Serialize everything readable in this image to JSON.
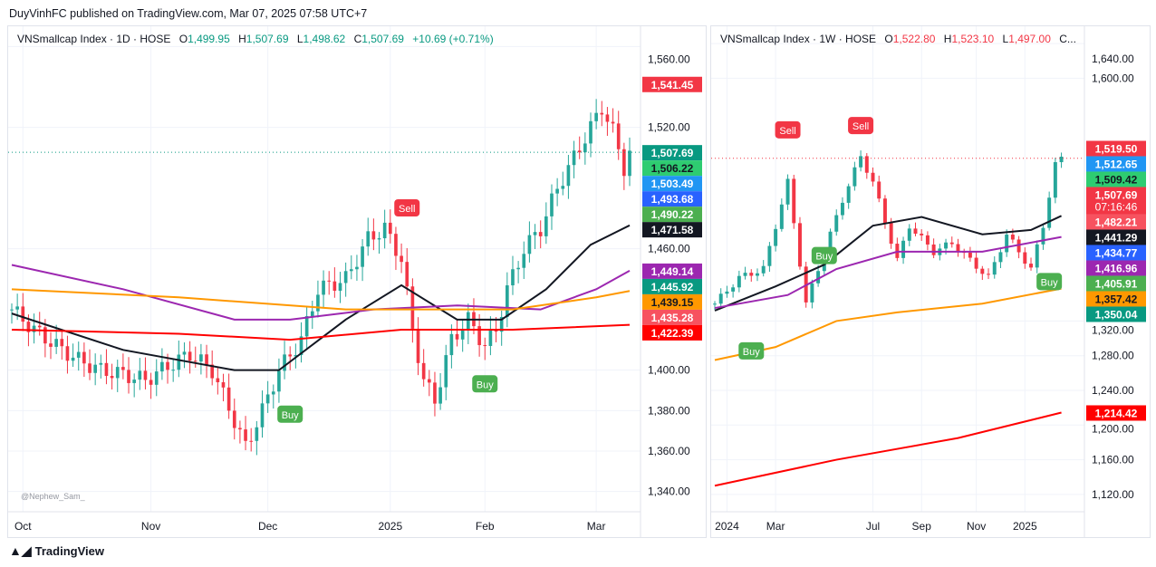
{
  "header": {
    "published": "DuyVinhFC published on TradingView.com, Mar 07, 2025 07:58 UTC+7"
  },
  "footer": {
    "brand": "TradingView"
  },
  "watermark": "@Nephew_Sam_",
  "colors": {
    "up": "#26a69a",
    "down": "#f23645",
    "ma_black": "#131722",
    "ma_purple": "#9c27b0",
    "ma_orange": "#ff9800",
    "ma_red": "#ff0000",
    "trail": "#4caf50",
    "sell_line": "#f7525f"
  },
  "chart_data": [
    {
      "type": "candlestick",
      "title": "VNSmallcap Index · 1D · HOSE",
      "ohlc": {
        "O": "1,499.95",
        "H": "1,507.69",
        "L": "1,498.62",
        "C": "1,507.69",
        "change": "+10.69 (+0.71%)"
      },
      "ohlc_color": "#089981",
      "ylim": [
        1330,
        1570
      ],
      "yticks": [
        "1,560.00",
        "1,520.00",
        "1,460.00",
        "1,400.00",
        "1,380.00",
        "1,360.00",
        "1,340.00"
      ],
      "ytick_values": [
        1560,
        1520,
        1460,
        1400,
        1380,
        1360,
        1340
      ],
      "xticks": [
        {
          "label": "Oct",
          "i": 2
        },
        {
          "label": "Nov",
          "i": 25
        },
        {
          "label": "Dec",
          "i": 46
        },
        {
          "label": "2025",
          "i": 68
        },
        {
          "label": "Feb",
          "i": 85
        },
        {
          "label": "Mar",
          "i": 105
        }
      ],
      "n": 112,
      "close": [
        [
          0,
          1430
        ],
        [
          4,
          1420
        ],
        [
          8,
          1412
        ],
        [
          12,
          1405
        ],
        [
          16,
          1400
        ],
        [
          20,
          1398
        ],
        [
          24,
          1395
        ],
        [
          28,
          1402
        ],
        [
          32,
          1408
        ],
        [
          36,
          1400
        ],
        [
          40,
          1375
        ],
        [
          42,
          1362
        ],
        [
          45,
          1380
        ],
        [
          48,
          1400
        ],
        [
          52,
          1415
        ],
        [
          55,
          1440
        ],
        [
          60,
          1445
        ],
        [
          64,
          1465
        ],
        [
          67,
          1470
        ],
        [
          70,
          1455
        ],
        [
          72,
          1420
        ],
        [
          74,
          1395
        ],
        [
          76,
          1385
        ],
        [
          79,
          1415
        ],
        [
          82,
          1425
        ],
        [
          85,
          1412
        ],
        [
          87,
          1420
        ],
        [
          89,
          1440
        ],
        [
          92,
          1460
        ],
        [
          95,
          1470
        ],
        [
          98,
          1490
        ],
        [
          101,
          1505
        ],
        [
          104,
          1520
        ],
        [
          106,
          1530
        ],
        [
          108,
          1518
        ],
        [
          110,
          1500
        ],
        [
          111,
          1507.69
        ]
      ],
      "series": [
        {
          "name": "MA black",
          "color": "#131722",
          "pts": [
            [
              0,
              1428
            ],
            [
              20,
              1410
            ],
            [
              40,
              1400
            ],
            [
              48,
              1400
            ],
            [
              60,
              1425
            ],
            [
              70,
              1442
            ],
            [
              80,
              1425
            ],
            [
              88,
              1425
            ],
            [
              96,
              1440
            ],
            [
              104,
              1462
            ],
            [
              111,
              1471.58
            ]
          ]
        },
        {
          "name": "MA purple",
          "color": "#9c27b0",
          "pts": [
            [
              0,
              1452
            ],
            [
              20,
              1440
            ],
            [
              40,
              1425
            ],
            [
              50,
              1425
            ],
            [
              65,
              1430
            ],
            [
              80,
              1432
            ],
            [
              95,
              1430
            ],
            [
              105,
              1440
            ],
            [
              111,
              1449.14
            ]
          ]
        },
        {
          "name": "MA orange",
          "color": "#ff9800",
          "pts": [
            [
              0,
              1440
            ],
            [
              30,
              1436
            ],
            [
              60,
              1430
            ],
            [
              90,
              1430
            ],
            [
              105,
              1436
            ],
            [
              111,
              1439.15
            ]
          ]
        },
        {
          "name": "MA red",
          "color": "#ff0000",
          "pts": [
            [
              0,
              1420
            ],
            [
              30,
              1418
            ],
            [
              50,
              1415
            ],
            [
              70,
              1420
            ],
            [
              90,
              1420
            ],
            [
              111,
              1422.39
            ]
          ]
        }
      ],
      "price_labels": [
        {
          "v": "1,541.45",
          "bg": "#f23645",
          "fg": "#fff"
        },
        {
          "v": "1,507.69",
          "bg": "#089981",
          "fg": "#fff"
        },
        {
          "v": "1,506.22",
          "bg": "#2ecc71",
          "fg": "#131722"
        },
        {
          "v": "1,503.49",
          "bg": "#2196f3",
          "fg": "#fff"
        },
        {
          "v": "1,493.68",
          "bg": "#2962ff",
          "fg": "#fff"
        },
        {
          "v": "1,490.22",
          "bg": "#4caf50",
          "fg": "#fff"
        },
        {
          "v": "1,471.58",
          "bg": "#131722",
          "fg": "#fff"
        },
        {
          "v": "1,449.14",
          "bg": "#9c27b0",
          "fg": "#fff"
        },
        {
          "v": "1,445.92",
          "bg": "#089981",
          "fg": "#fff"
        },
        {
          "v": "1,439.15",
          "bg": "#ff9800",
          "fg": "#131722"
        },
        {
          "v": "1,435.28",
          "bg": "#f7525f",
          "fg": "#fff"
        },
        {
          "v": "1,422.39",
          "bg": "#ff0000",
          "fg": "#fff"
        }
      ],
      "signals": [
        {
          "text": "Buy",
          "i": 50,
          "v": 1378,
          "color": "#4caf50"
        },
        {
          "text": "Sell",
          "i": 71,
          "v": 1480,
          "color": "#f23645"
        },
        {
          "text": "Buy",
          "i": 85,
          "v": 1393,
          "color": "#4caf50"
        }
      ]
    },
    {
      "type": "candlestick",
      "title": "VNSmallcap Index · 1W · HOSE",
      "ohlc": {
        "O": "1,522.80",
        "H": "1,523.10",
        "L": "1,497.00",
        "C": "C..."
      },
      "ohlc_color": "#f23645",
      "ylim": [
        1100,
        1660
      ],
      "yticks": [
        "1,640.00",
        "1,600.00",
        "1,320.00",
        "1,280.00",
        "1,240.00",
        "1,200.00",
        "1,160.00",
        "1,120.00"
      ],
      "ytick_values": [
        1640,
        1600,
        1320,
        1280,
        1240,
        1200,
        1160,
        1120
      ],
      "xticks": [
        {
          "label": "2024",
          "i": 2
        },
        {
          "label": "Mar",
          "i": 10
        },
        {
          "label": "Jul",
          "i": 26
        },
        {
          "label": "Sep",
          "i": 34
        },
        {
          "label": "Nov",
          "i": 43
        },
        {
          "label": "2025",
          "i": 51
        }
      ],
      "n": 60,
      "close": [
        [
          0,
          1340
        ],
        [
          4,
          1370
        ],
        [
          8,
          1380
        ],
        [
          12,
          1480
        ],
        [
          15,
          1340
        ],
        [
          18,
          1400
        ],
        [
          21,
          1460
        ],
        [
          24,
          1510
        ],
        [
          26,
          1480
        ],
        [
          30,
          1390
        ],
        [
          32,
          1430
        ],
        [
          36,
          1400
        ],
        [
          39,
          1410
        ],
        [
          42,
          1390
        ],
        [
          45,
          1370
        ],
        [
          48,
          1420
        ],
        [
          52,
          1380
        ],
        [
          54,
          1430
        ],
        [
          56,
          1500
        ],
        [
          57,
          1507.69
        ]
      ],
      "series": [
        {
          "name": "MA black",
          "color": "#131722",
          "pts": [
            [
              0,
              1332
            ],
            [
              10,
              1360
            ],
            [
              18,
              1385
            ],
            [
              26,
              1430
            ],
            [
              34,
              1440
            ],
            [
              44,
              1420
            ],
            [
              52,
              1425
            ],
            [
              57,
              1441.29
            ]
          ]
        },
        {
          "name": "MA purple",
          "color": "#9c27b0",
          "pts": [
            [
              0,
              1335
            ],
            [
              12,
              1350
            ],
            [
              20,
              1380
            ],
            [
              30,
              1400
            ],
            [
              44,
              1400
            ],
            [
              57,
              1416.96
            ]
          ]
        },
        {
          "name": "MA orange",
          "color": "#ff9800",
          "pts": [
            [
              0,
              1275
            ],
            [
              10,
              1290
            ],
            [
              20,
              1320
            ],
            [
              30,
              1330
            ],
            [
              44,
              1340
            ],
            [
              57,
              1357.42
            ]
          ]
        },
        {
          "name": "MA red",
          "color": "#ff0000",
          "pts": [
            [
              0,
              1130
            ],
            [
              20,
              1160
            ],
            [
              40,
              1185
            ],
            [
              57,
              1214.42
            ]
          ]
        }
      ],
      "price_labels": [
        {
          "v": "1,519.50",
          "bg": "#f23645",
          "fg": "#fff"
        },
        {
          "v": "1,512.65",
          "bg": "#2196f3",
          "fg": "#fff"
        },
        {
          "v": "1,509.42",
          "bg": "#2ecc71",
          "fg": "#131722"
        },
        {
          "v": "1,507.69",
          "bg": "#f23645",
          "fg": "#fff",
          "sub": "07:16:46"
        },
        {
          "v": "1,482.21",
          "bg": "#f7525f",
          "fg": "#fff"
        },
        {
          "v": "1,441.29",
          "bg": "#131722",
          "fg": "#fff"
        },
        {
          "v": "1,434.77",
          "bg": "#2962ff",
          "fg": "#fff"
        },
        {
          "v": "1,416.96",
          "bg": "#9c27b0",
          "fg": "#fff"
        },
        {
          "v": "1,405.91",
          "bg": "#4caf50",
          "fg": "#fff"
        },
        {
          "v": "1,357.42",
          "bg": "#ff9800",
          "fg": "#131722"
        },
        {
          "v": "1,350.04",
          "bg": "#089981",
          "fg": "#fff"
        },
        {
          "v": "1,214.42",
          "bg": "#ff0000",
          "fg": "#fff"
        }
      ],
      "signals": [
        {
          "text": "Sell",
          "i": 12,
          "v": 1540,
          "color": "#f23645"
        },
        {
          "text": "Sell",
          "i": 24,
          "v": 1545,
          "color": "#f23645"
        },
        {
          "text": "Buy",
          "i": 6,
          "v": 1285,
          "color": "#4caf50"
        },
        {
          "text": "Buy",
          "i": 18,
          "v": 1395,
          "color": "#4caf50"
        },
        {
          "text": "Buy",
          "i": 55,
          "v": 1365,
          "color": "#4caf50"
        }
      ]
    }
  ]
}
